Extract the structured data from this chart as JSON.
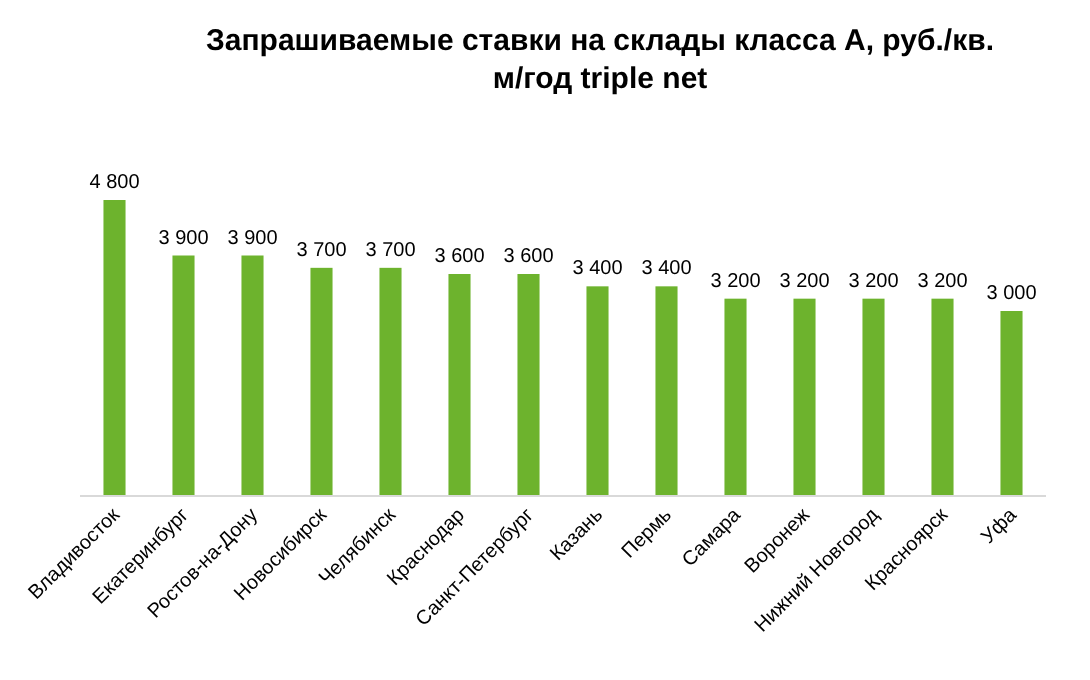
{
  "chart_data": {
    "type": "bar",
    "title": "Запрашиваемые ставки на склады класса А, руб./кв. м/год triple net",
    "categories": [
      "Владивосток",
      "Екатеринбург",
      "Ростов-на-Дону",
      "Новосибирск",
      "Челябинск",
      "Краснодар",
      "Санкт-Петербург",
      "Казань",
      "Пермь",
      "Самара",
      "Воронеж",
      "Нижний Новгород",
      "Красноярск",
      "Уфа"
    ],
    "values": [
      4800,
      3900,
      3900,
      3700,
      3700,
      3600,
      3600,
      3400,
      3400,
      3200,
      3200,
      3200,
      3200,
      3000
    ],
    "value_labels": [
      "4 800",
      "3 900",
      "3 900",
      "3 700",
      "3 700",
      "3 600",
      "3 600",
      "3 400",
      "3 400",
      "3 200",
      "3 200",
      "3 200",
      "3 200",
      "3 000"
    ],
    "color": "#6db32d"
  }
}
